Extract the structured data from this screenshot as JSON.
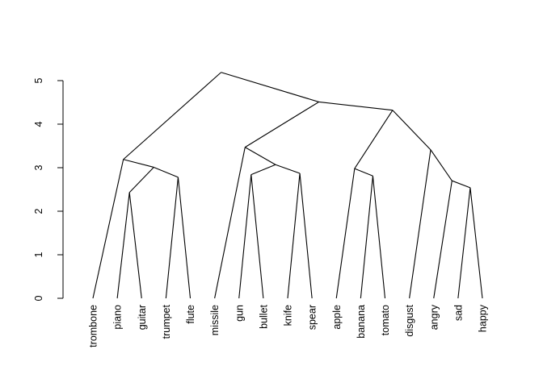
{
  "chart_data": {
    "type": "dendrogram",
    "title": "",
    "xlabel": "",
    "ylabel": "",
    "ylim": [
      0,
      5
    ],
    "y_ticks": [
      "0",
      "1",
      "2",
      "3",
      "4",
      "5"
    ],
    "leaves": [
      "trombone",
      "piano",
      "guitar",
      "trumpet",
      "flute",
      "missile",
      "gun",
      "bullet",
      "knife",
      "spear",
      "apple",
      "banana",
      "tomato",
      "disgust",
      "angry",
      "sad",
      "happy"
    ],
    "tree": {
      "height": 5.19,
      "children": [
        {
          "height": 3.19,
          "children": [
            "trombone",
            {
              "height": 3.01,
              "children": [
                {
                  "height": 2.43,
                  "children": [
                    "piano",
                    "guitar"
                  ]
                },
                {
                  "height": 2.78,
                  "children": [
                    "trumpet",
                    "flute"
                  ]
                }
              ]
            }
          ]
        },
        {
          "height": 4.51,
          "children": [
            {
              "height": 3.47,
              "children": [
                "missile",
                {
                  "height": 3.07,
                  "children": [
                    {
                      "height": 2.84,
                      "children": [
                        "gun",
                        "bullet"
                      ]
                    },
                    {
                      "height": 2.87,
                      "children": [
                        "knife",
                        "spear"
                      ]
                    }
                  ]
                }
              ]
            },
            {
              "height": 4.32,
              "children": [
                {
                  "height": 2.98,
                  "children": [
                    "apple",
                    {
                      "height": 2.81,
                      "children": [
                        "banana",
                        "tomato"
                      ]
                    }
                  ]
                },
                {
                  "height": 3.41,
                  "children": [
                    "disgust",
                    {
                      "height": 2.7,
                      "children": [
                        "angry",
                        {
                          "height": 2.54,
                          "children": [
                            "sad",
                            "happy"
                          ]
                        }
                      ]
                    }
                  ]
                }
              ]
            }
          ]
        }
      ]
    },
    "line_color": "#000000"
  }
}
